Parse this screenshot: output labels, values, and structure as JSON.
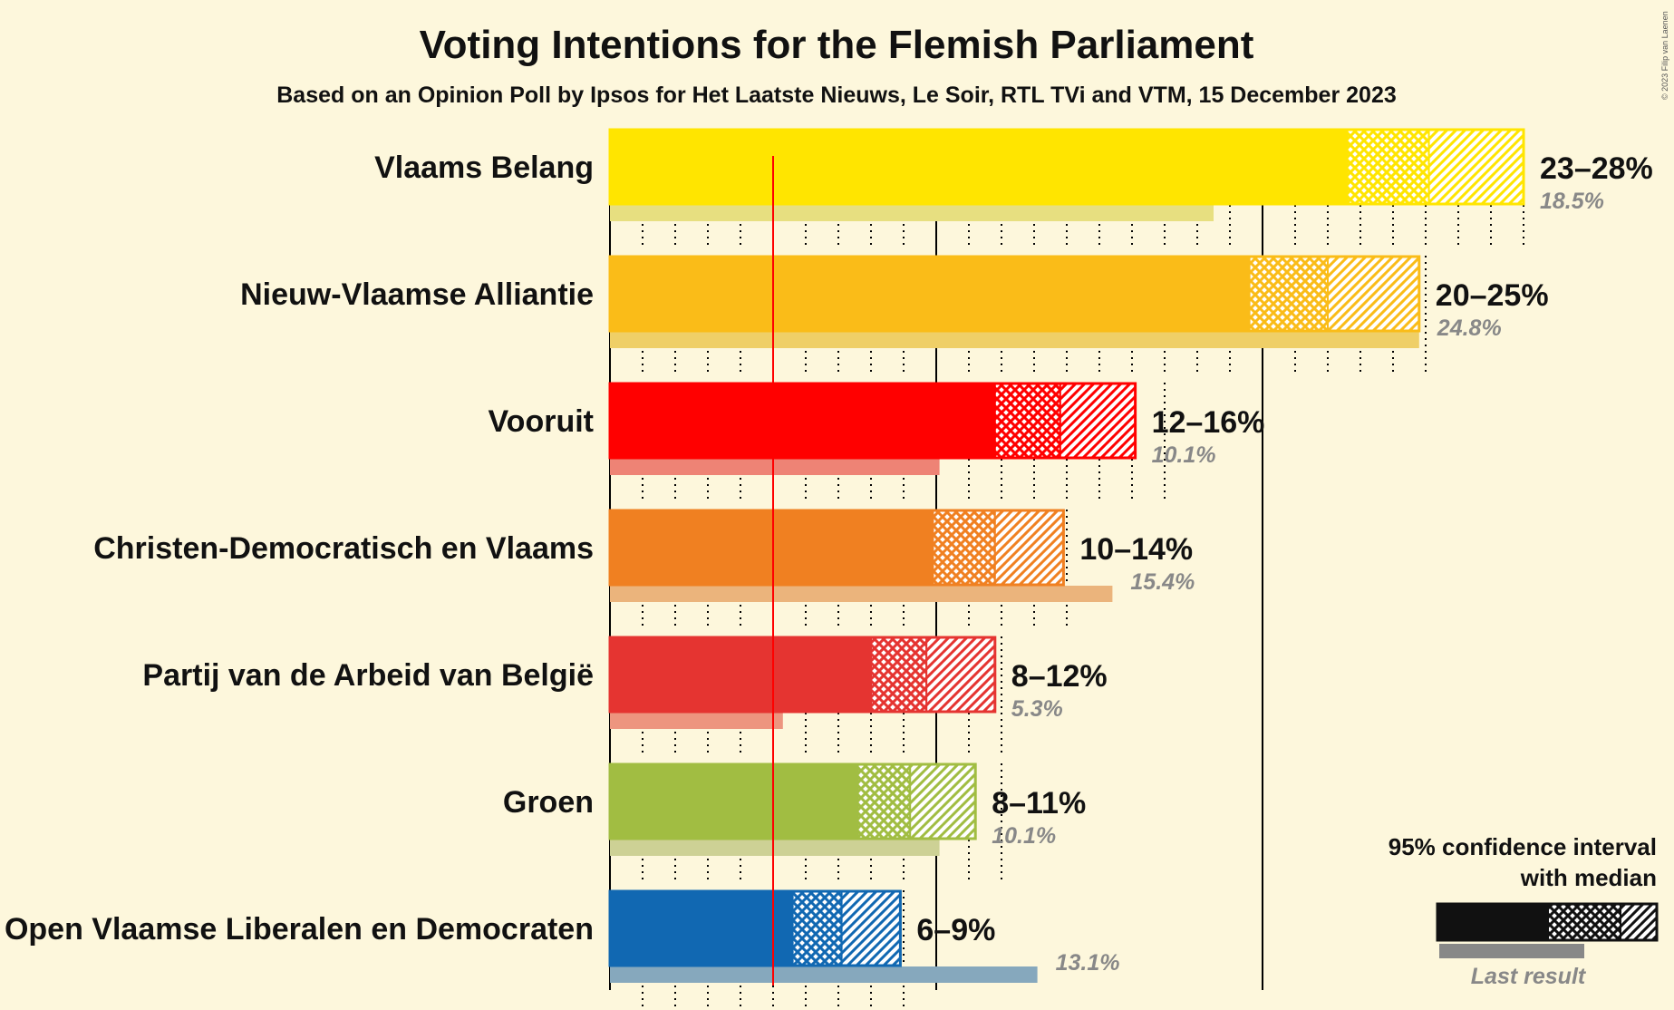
{
  "chart_data": {
    "type": "bar",
    "title": "Voting Intentions for the Flemish Parliament",
    "subtitle": "Based on an Opinion Poll by Ipsos for Het Laatste Nieuws, Le Soir, RTL TVi and VTM, 15 December 2023",
    "copyright": "© 2023 Filip van Laenen",
    "threshold": 5,
    "xlim": [
      0,
      28
    ],
    "grid": true,
    "gridlines_solid": [
      0,
      10,
      20
    ],
    "gridlines_dotted_step": 1,
    "legend_position": "bottom-right",
    "legend": {
      "ci_label_line1": "95% confidence interval",
      "ci_label_line2": "with median",
      "last_result_label": "Last result"
    },
    "series": [
      {
        "name": "Vlaams Belang",
        "color": "#ffe500",
        "last_color": "#e7df80",
        "ci_low": 22.6,
        "median": 25.1,
        "ci_high": 28.0,
        "range_label": "23–28%",
        "last_result": 18.5,
        "last_label": "18.5%"
      },
      {
        "name": "Nieuw-Vlaamse Alliantie",
        "color": "#fabc18",
        "last_color": "#efcf67",
        "ci_low": 19.6,
        "median": 22.0,
        "ci_high": 24.8,
        "range_label": "20–25%",
        "last_result": 24.8,
        "last_label": "24.8%"
      },
      {
        "name": "Vooruit",
        "color": "#ff0000",
        "last_color": "#ee8375",
        "ci_low": 11.8,
        "median": 13.8,
        "ci_high": 16.1,
        "range_label": "12–16%",
        "last_result": 10.1,
        "last_label": "10.1%"
      },
      {
        "name": "Christen-Democratisch en Vlaams",
        "color": "#f08021",
        "last_color": "#ebb47c",
        "ci_low": 9.9,
        "median": 11.8,
        "ci_high": 13.9,
        "range_label": "10–14%",
        "last_result": 15.4,
        "last_label": "15.4%"
      },
      {
        "name": "Partij van de Arbeid van België",
        "color": "#e53431",
        "last_color": "#ed957f",
        "ci_low": 8.0,
        "median": 9.7,
        "ci_high": 11.8,
        "range_label": "8–12%",
        "last_result": 5.3,
        "last_label": "5.3%"
      },
      {
        "name": "Groen",
        "color": "#a1bd42",
        "last_color": "#cdd195",
        "ci_low": 7.6,
        "median": 9.2,
        "ci_high": 11.2,
        "range_label": "8–11%",
        "last_result": 10.1,
        "last_label": "10.1%"
      },
      {
        "name": "Open Vlaamse Liberalen en Democraten",
        "color": "#1168b2",
        "last_color": "#86a8bd",
        "ci_low": 5.6,
        "median": 7.1,
        "ci_high": 8.9,
        "range_label": "6–9%",
        "last_result": 13.1,
        "last_label": "13.1%"
      }
    ]
  }
}
